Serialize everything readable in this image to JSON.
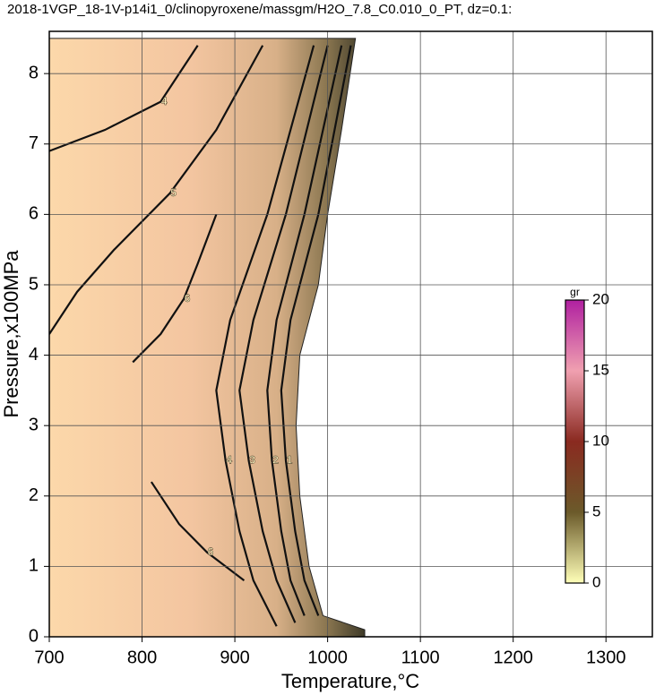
{
  "chart_data": {
    "type": "contour",
    "title": "2018-1VGP_18-1V-p14i1_0/clinopyroxene/massgm/H2O_7.8_C0.010_0_PT, dz=0.1:",
    "x_label": "Temperature,°C",
    "y_label": "Pressure,x100MPa",
    "xlim": [
      700,
      1350
    ],
    "ylim": [
      0,
      8.6
    ],
    "xticks": [
      700,
      800,
      900,
      1000,
      1100,
      1200,
      1300
    ],
    "yticks": [
      0,
      1,
      2,
      3,
      4,
      5,
      6,
      7,
      8
    ],
    "grid": true,
    "region": {
      "x": [
        700,
        700,
        1030,
        1015,
        1000,
        990,
        970,
        966,
        970,
        980,
        995,
        1040,
        1040
      ],
      "y": [
        0,
        8.5,
        8.5,
        7.2,
        6,
        5,
        4,
        3,
        2,
        1,
        0.3,
        0.1,
        0
      ]
    },
    "contours": [
      {
        "level": 1,
        "x": [
          1025,
          990,
          960,
          950,
          955,
          965,
          975,
          990
        ],
        "y": [
          8.4,
          6,
          4.5,
          3.5,
          2.5,
          1.5,
          0.8,
          0.3
        ]
      },
      {
        "level": 2,
        "x": [
          1015,
          975,
          945,
          935,
          940,
          950,
          960,
          975
        ],
        "y": [
          8.4,
          6,
          4.5,
          3.5,
          2.5,
          1.5,
          0.8,
          0.3
        ]
      },
      {
        "level": 3,
        "x": [
          1000,
          955,
          920,
          905,
          915,
          930,
          945,
          965
        ],
        "y": [
          8.4,
          6,
          4.5,
          3.5,
          2.5,
          1.5,
          0.8,
          0.2
        ]
      },
      {
        "level": 4,
        "x": [
          985,
          935,
          895,
          880,
          890,
          905,
          920,
          945
        ],
        "y": [
          8.4,
          6,
          4.5,
          3.5,
          2.5,
          1.5,
          0.8,
          0.15
        ]
      },
      {
        "level": 4,
        "x": [
          700,
          760,
          820,
          860
        ],
        "y": [
          6.9,
          7.2,
          7.6,
          8.4
        ]
      },
      {
        "level": 5,
        "x": [
          700,
          730,
          770,
          830,
          880,
          930
        ],
        "y": [
          4.3,
          4.9,
          5.5,
          6.3,
          7.2,
          8.4
        ]
      },
      {
        "level": 6,
        "x": [
          790,
          820,
          845,
          860,
          880
        ],
        "y": [
          3.9,
          4.3,
          4.8,
          5.3,
          6.0
        ]
      },
      {
        "level": 6,
        "x": [
          810,
          840,
          870,
          910
        ],
        "y": [
          2.2,
          1.6,
          1.2,
          0.8
        ]
      }
    ],
    "colorbar": {
      "label": "gr",
      "clim": [
        0,
        20
      ],
      "ticks": [
        0,
        5,
        10,
        15,
        20
      ],
      "colors": [
        "#ffffb8",
        "#6b5a2a",
        "#8a2a20",
        "#f0a0b0",
        "#b020a0"
      ]
    }
  }
}
